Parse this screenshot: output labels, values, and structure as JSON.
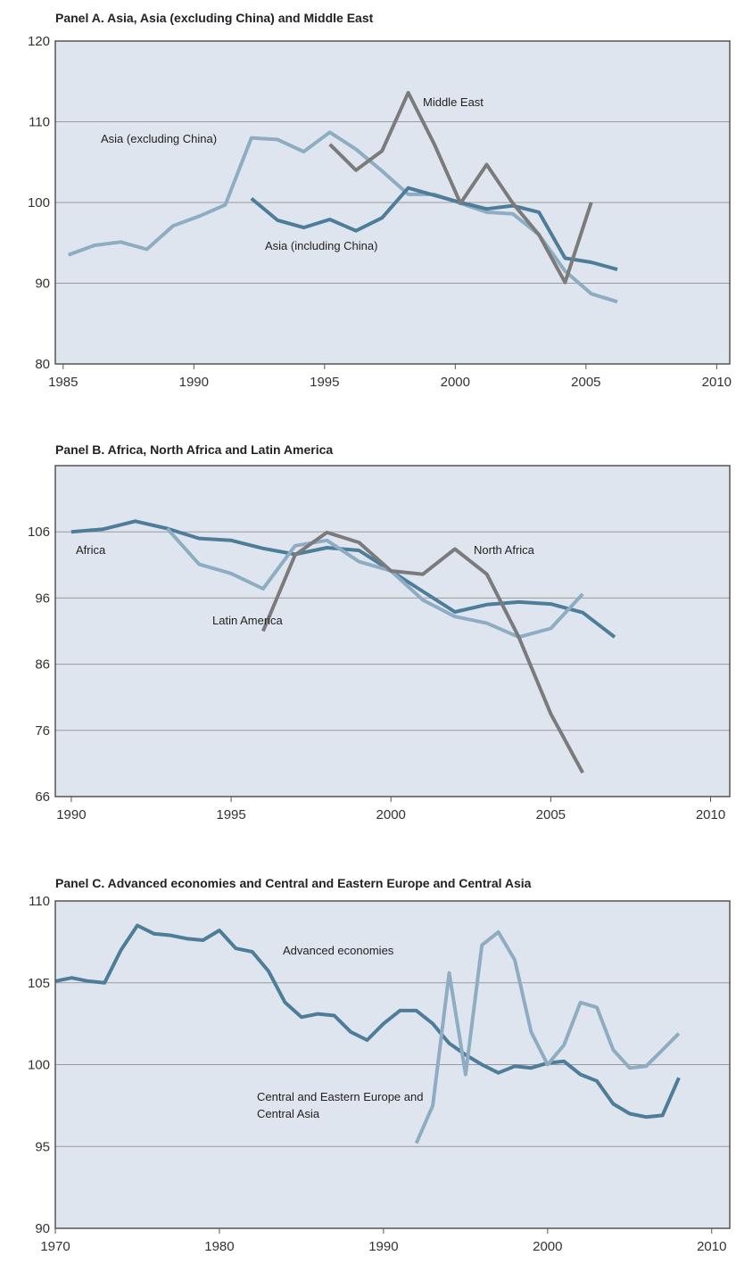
{
  "chart_data": [
    {
      "type": "line",
      "title": "Panel A.  Asia, Asia (excluding China) and Middle East",
      "x": [
        1985.2,
        1986.2,
        1987.2,
        1988.2,
        1989.2,
        1990.2,
        1991.2,
        1992.2,
        1993.2,
        1994.2,
        1995.2,
        1996.2,
        1997.2,
        1998.2,
        1999.2,
        2000.2,
        2001.2,
        2002.2,
        2003.2,
        2004.2,
        2005.2,
        2006.2
      ],
      "series": [
        {
          "name": "Asia (excluding China)",
          "color": "#8eadc2",
          "values": [
            93.5,
            94.7,
            95.1,
            94.2,
            97.1,
            98.3,
            99.7,
            108,
            107.8,
            106.3,
            108.7,
            106.6,
            103.9,
            101,
            101,
            99.9,
            98.8,
            98.6,
            96,
            91.5,
            88.7,
            87.7
          ]
        },
        {
          "name": "Asia (including China)",
          "color": "#4e7d99",
          "values": [
            null,
            null,
            null,
            null,
            null,
            null,
            null,
            100.5,
            97.8,
            96.9,
            97.9,
            96.5,
            98.1,
            101.8,
            100.9,
            100,
            99.2,
            99.6,
            98.8,
            93.1,
            92.6,
            91.7
          ]
        },
        {
          "name": "Middle East",
          "color": "#7b7b7b",
          "values": [
            null,
            null,
            null,
            null,
            null,
            null,
            null,
            null,
            null,
            null,
            107.2,
            104,
            106.4,
            113.6,
            107.2,
            99.9,
            104.7,
            99.9,
            96,
            90.1,
            100,
            null
          ]
        }
      ],
      "xlim": [
        1984.7,
        2010.5
      ],
      "xticks": [
        1985,
        1990,
        1995,
        2000,
        2005,
        2010
      ],
      "ylim": [
        80,
        120
      ],
      "yticks": [
        80,
        90,
        100,
        110,
        120
      ],
      "grid": true
    },
    {
      "type": "line",
      "title": "Panel B.  Africa, North Africa and Latin America",
      "x": [
        1990,
        1991,
        1992,
        1993,
        1994,
        1995,
        1996,
        1997,
        1998,
        1999,
        2000,
        2001,
        2002,
        2003,
        2004,
        2005,
        2006,
        2007
      ],
      "series": [
        {
          "name": "Africa",
          "color": "#4e7d99",
          "values": [
            106,
            106.4,
            107.6,
            106.5,
            105,
            104.7,
            103.5,
            102.6,
            103.6,
            103.2,
            100.1,
            97,
            93.9,
            95,
            95.4,
            95.1,
            93.8,
            90.1
          ]
        },
        {
          "name": "Latin America",
          "color": "#8eadc2",
          "values": [
            null,
            null,
            null,
            106.5,
            101.1,
            99.7,
            97.4,
            103.9,
            104.7,
            101.5,
            100.1,
            95.7,
            93.2,
            92.2,
            90.1,
            91.4,
            96.6,
            null
          ]
        },
        {
          "name": "North Africa",
          "color": "#7b7b7b",
          "values": [
            null,
            null,
            null,
            null,
            null,
            null,
            91,
            102.5,
            105.9,
            104.4,
            100.1,
            99.6,
            103.4,
            99.6,
            90.1,
            78.5,
            69.6,
            null
          ]
        }
      ],
      "xlim": [
        1989.5,
        2010.6
      ],
      "xticks": [
        1990,
        1995,
        2000,
        2005,
        2010
      ],
      "ylim": [
        66,
        116
      ],
      "yticks": [
        66,
        76,
        86,
        96,
        106
      ],
      "grid": true
    },
    {
      "type": "line",
      "title": "Panel C.  Advanced economies and Central and Eastern Europe and Central Asia",
      "x": [
        1970,
        1971,
        1972,
        1973,
        1974,
        1975,
        1976,
        1977,
        1978,
        1979,
        1980,
        1981,
        1982,
        1983,
        1984,
        1985,
        1986,
        1987,
        1988,
        1989,
        1990,
        1991,
        1992,
        1993,
        1994,
        1995,
        1996,
        1997,
        1998,
        1999,
        2000,
        2001,
        2002,
        2003,
        2004,
        2005,
        2006,
        2007,
        2008
      ],
      "series": [
        {
          "name": "Advanced economies",
          "color": "#4e7d99",
          "values": [
            105.1,
            105.3,
            105.1,
            105,
            107,
            108.5,
            108,
            107.9,
            107.7,
            107.6,
            108.2,
            107.1,
            106.9,
            105.7,
            103.8,
            102.9,
            103.1,
            103,
            102,
            101.5,
            102.5,
            103.3,
            103.3,
            102.5,
            101.3,
            100.6,
            100,
            99.5,
            99.9,
            99.8,
            100.1,
            100.2,
            99.4,
            99,
            97.6,
            97,
            96.8,
            96.9,
            99.2
          ]
        },
        {
          "name": "Central and Eastern Europe and Central Asia",
          "color": "#8eadc2",
          "values": [
            null,
            null,
            null,
            null,
            null,
            null,
            null,
            null,
            null,
            null,
            null,
            null,
            null,
            null,
            null,
            null,
            null,
            null,
            null,
            null,
            null,
            null,
            95.2,
            97.5,
            105.6,
            99.4,
            107.3,
            108.1,
            106.4,
            102,
            100,
            101.2,
            103.8,
            103.5,
            100.9,
            99.8,
            99.9,
            100.9,
            101.9
          ]
        }
      ],
      "xlim": [
        1970,
        2011.1
      ],
      "xticks": [
        1970,
        1980,
        1990,
        2000,
        2010
      ],
      "ylim": [
        90,
        110
      ],
      "yticks": [
        90,
        95,
        100,
        105,
        110
      ],
      "grid": true
    }
  ]
}
